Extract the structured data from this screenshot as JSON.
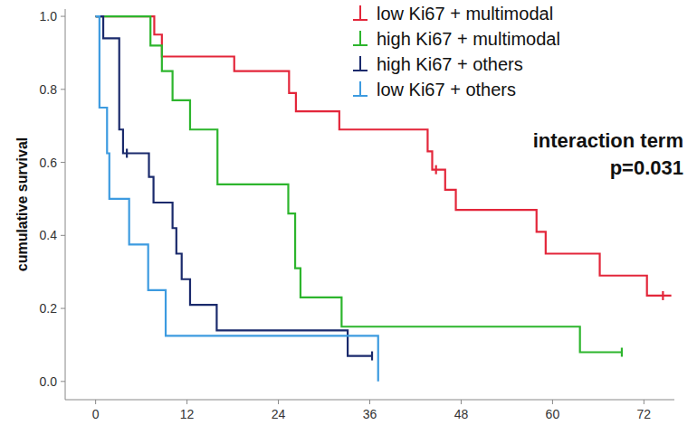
{
  "chart_data": {
    "type": "step",
    "y_label": "cumulative survival",
    "annotation": [
      "interaction term",
      "p=0.031"
    ],
    "legend": "top-right",
    "xlim": [
      -4,
      76
    ],
    "xticks": [
      0,
      12,
      24,
      36,
      48,
      60,
      72
    ],
    "ylim": [
      -0.05,
      1.02
    ],
    "yticks": [
      {
        "value": 0,
        "label": "0.0"
      },
      {
        "value": 0.2,
        "label": "0.2"
      },
      {
        "value": 0.4,
        "label": "0.4"
      },
      {
        "value": 0.6,
        "label": "0.6"
      },
      {
        "value": 0.8,
        "label": "0.8"
      },
      {
        "value": 1.0,
        "label": "1.0"
      }
    ],
    "grid": false,
    "series": [
      {
        "name": "low Ki67 + multimodal",
        "color": "#e3263a",
        "x": [
          0,
          7.7,
          8.7,
          18.2,
          25.4,
          26.3,
          32,
          43.6,
          44.2,
          45.9,
          47.3,
          57.9,
          59.1,
          66.2,
          72.4,
          75.6
        ],
        "values": [
          1.0,
          0.95,
          0.89,
          0.85,
          0.79,
          0.74,
          0.69,
          0.63,
          0.58,
          0.525,
          0.47,
          0.41,
          0.35,
          0.29,
          0.235,
          0.235
        ],
        "censor_x": [
          44.7,
          74.5
        ],
        "censor_values": [
          0.58,
          0.235
        ]
      },
      {
        "name": "high Ki67 + multimodal",
        "color": "#2db52d",
        "x": [
          0,
          7.2,
          8.7,
          10.1,
          12.4,
          16,
          25.3,
          26.2,
          26.9,
          32.3,
          63.6,
          69.1
        ],
        "values": [
          1.0,
          0.92,
          0.85,
          0.77,
          0.69,
          0.54,
          0.46,
          0.31,
          0.23,
          0.15,
          0.08,
          0.08
        ],
        "censor_x": [
          69.1
        ],
        "censor_values": [
          0.08
        ]
      },
      {
        "name": "high Ki67 + others",
        "color": "#1a2a6c",
        "x": [
          0,
          1.0,
          3.1,
          3.6,
          7,
          7.6,
          10.1,
          10.6,
          11.3,
          12.4,
          15.9,
          33.1,
          36.3
        ],
        "values": [
          1.0,
          0.94,
          0.69,
          0.625,
          0.56,
          0.49,
          0.42,
          0.35,
          0.28,
          0.21,
          0.14,
          0.07,
          0.07
        ],
        "censor_x": [
          4.1,
          36.3
        ],
        "censor_values": [
          0.625,
          0.07
        ]
      },
      {
        "name": "low Ki67 + others",
        "color": "#3d9be0",
        "x": [
          0,
          0.5,
          1.5,
          1.8,
          4.4,
          6.9,
          9.2,
          37.1
        ],
        "values": [
          1.0,
          0.75,
          0.625,
          0.5,
          0.375,
          0.25,
          0.125,
          0.0
        ],
        "censor_x": [],
        "censor_values": []
      }
    ]
  }
}
